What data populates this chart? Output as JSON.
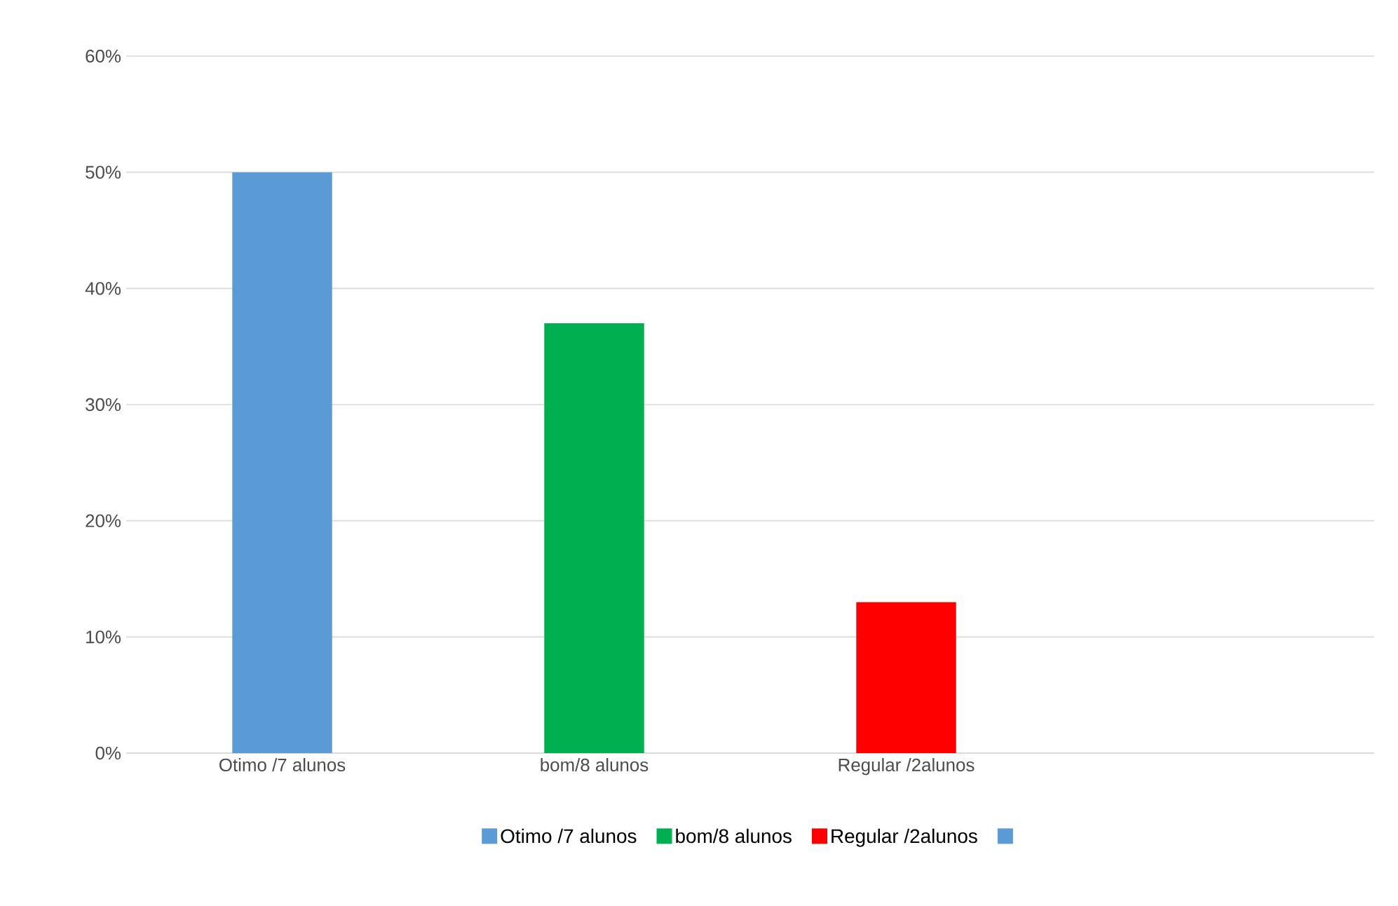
{
  "chart_data": {
    "type": "bar",
    "categories": [
      "Otimo /7 alunos",
      "bom/8 alunos",
      "Regular /2alunos",
      null
    ],
    "series": [
      {
        "name": "Otimo /7 alunos",
        "color": "#5b9bd5",
        "values": [
          50,
          null,
          null,
          null
        ]
      },
      {
        "name": "bom/8 alunos",
        "color": "#00b050",
        "values": [
          null,
          37,
          null,
          null
        ]
      },
      {
        "name": "Regular /2alunos",
        "color": "#ff0000",
        "values": [
          null,
          null,
          13,
          null
        ]
      },
      {
        "color": "#5b9bd5",
        "values": [
          null,
          null,
          null,
          null
        ]
      }
    ],
    "ylim": [
      0,
      60
    ],
    "yticks": [
      {
        "value": 0,
        "label": "0%"
      },
      {
        "value": 10,
        "label": "10%"
      },
      {
        "value": 20,
        "label": "20%"
      },
      {
        "value": 30,
        "label": "30%"
      },
      {
        "value": 40,
        "label": "40%"
      },
      {
        "value": 50,
        "label": "50%"
      },
      {
        "value": 60,
        "label": "60%"
      }
    ],
    "grid": "y",
    "legend": "bottom"
  }
}
